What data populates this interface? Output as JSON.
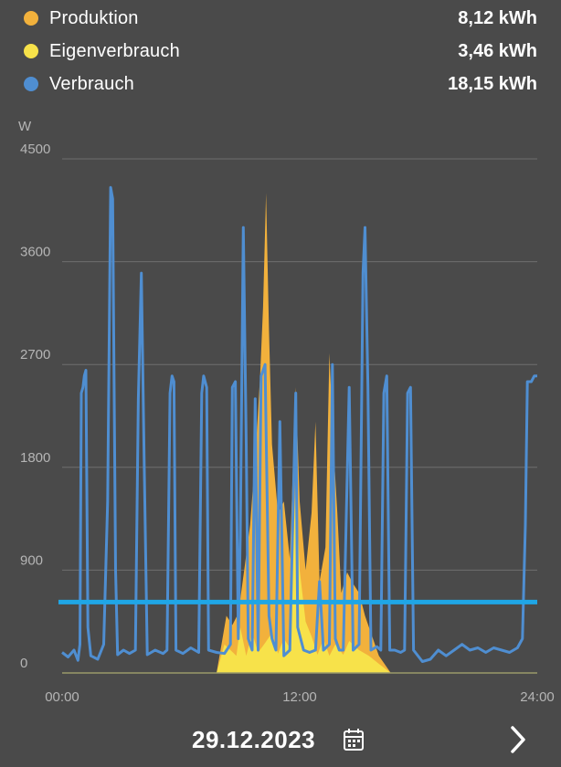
{
  "legend": [
    {
      "label": "Produktion",
      "value": "8,12 kWh",
      "color": "#f2b13c"
    },
    {
      "label": "Eigenverbrauch",
      "value": "3,46 kWh",
      "color": "#f7e24a"
    },
    {
      "label": "Verbrauch",
      "value": "18,15 kWh",
      "color": "#4f8ed1"
    }
  ],
  "footer": {
    "date": "29.12.2023",
    "calendar_icon": "calendar-icon",
    "next_icon": "chevron-right-icon"
  },
  "colors": {
    "background": "#4a4a4a",
    "grid": "#6e6e6e",
    "axis_text": "#b5b5b5",
    "threshold": "#1fa6e6"
  },
  "chart_data": {
    "type": "area",
    "ylabel": "W",
    "ylim": [
      0,
      4500
    ],
    "yticks": [
      "0",
      "900",
      "1800",
      "2700",
      "3600",
      "4500"
    ],
    "xlim": [
      0,
      24
    ],
    "xticks": [
      {
        "x": 0,
        "label": "00:00"
      },
      {
        "x": 12,
        "label": "12:00"
      },
      {
        "x": 24,
        "label": "24:00"
      }
    ],
    "threshold": 620,
    "series": [
      {
        "name": "Produktion",
        "color": "#f2b13c",
        "points": [
          [
            7.8,
            0
          ],
          [
            8.1,
            300
          ],
          [
            8.3,
            500
          ],
          [
            8.6,
            420
          ],
          [
            8.9,
            520
          ],
          [
            9.2,
            900
          ],
          [
            9.5,
            1300
          ],
          [
            9.8,
            2000
          ],
          [
            10.0,
            2600
          ],
          [
            10.15,
            3200
          ],
          [
            10.3,
            4200
          ],
          [
            10.45,
            3000
          ],
          [
            10.6,
            2000
          ],
          [
            10.9,
            1400
          ],
          [
            11.2,
            1500
          ],
          [
            11.5,
            1000
          ],
          [
            11.8,
            2500
          ],
          [
            12.0,
            1500
          ],
          [
            12.3,
            900
          ],
          [
            12.6,
            1400
          ],
          [
            12.8,
            2200
          ],
          [
            13.0,
            800
          ],
          [
            13.3,
            1100
          ],
          [
            13.5,
            2800
          ],
          [
            13.7,
            2000
          ],
          [
            13.9,
            1400
          ],
          [
            14.1,
            700
          ],
          [
            14.4,
            880
          ],
          [
            14.7,
            780
          ],
          [
            15.0,
            700
          ],
          [
            15.3,
            500
          ],
          [
            15.6,
            350
          ],
          [
            16.0,
            150
          ],
          [
            16.6,
            0
          ]
        ]
      },
      {
        "name": "Eigenverbrauch",
        "color": "#f7e24a",
        "points": [
          [
            7.8,
            0
          ],
          [
            8.2,
            250
          ],
          [
            8.8,
            150
          ],
          [
            9.0,
            400
          ],
          [
            9.3,
            150
          ],
          [
            9.6,
            350
          ],
          [
            9.9,
            180
          ],
          [
            10.2,
            250
          ],
          [
            10.6,
            350
          ],
          [
            10.9,
            170
          ],
          [
            11.2,
            300
          ],
          [
            11.5,
            220
          ],
          [
            11.8,
            1700
          ],
          [
            12.0,
            900
          ],
          [
            12.3,
            450
          ],
          [
            12.6,
            320
          ],
          [
            12.9,
            160
          ],
          [
            13.2,
            300
          ],
          [
            13.5,
            150
          ],
          [
            13.8,
            250
          ],
          [
            14.2,
            160
          ],
          [
            14.5,
            280
          ],
          [
            15.0,
            200
          ],
          [
            15.5,
            150
          ],
          [
            16.0,
            80
          ],
          [
            16.6,
            0
          ]
        ]
      },
      {
        "name": "Verbrauch",
        "color": "#4f8ed1",
        "points": [
          [
            0,
            180
          ],
          [
            0.3,
            140
          ],
          [
            0.6,
            200
          ],
          [
            0.8,
            110
          ],
          [
            0.9,
            250
          ],
          [
            0.97,
            2450
          ],
          [
            1.05,
            2500
          ],
          [
            1.12,
            2600
          ],
          [
            1.2,
            2650
          ],
          [
            1.3,
            400
          ],
          [
            1.45,
            150
          ],
          [
            1.8,
            120
          ],
          [
            2.1,
            250
          ],
          [
            2.3,
            1500
          ],
          [
            2.45,
            4250
          ],
          [
            2.55,
            4150
          ],
          [
            2.7,
            900
          ],
          [
            2.8,
            160
          ],
          [
            3.1,
            200
          ],
          [
            3.4,
            170
          ],
          [
            3.7,
            200
          ],
          [
            3.85,
            2400
          ],
          [
            4.0,
            3500
          ],
          [
            4.15,
            1800
          ],
          [
            4.3,
            160
          ],
          [
            4.7,
            200
          ],
          [
            5.1,
            170
          ],
          [
            5.3,
            200
          ],
          [
            5.45,
            2450
          ],
          [
            5.55,
            2600
          ],
          [
            5.65,
            2550
          ],
          [
            5.75,
            200
          ],
          [
            6.1,
            170
          ],
          [
            6.5,
            220
          ],
          [
            6.9,
            180
          ],
          [
            7.05,
            2450
          ],
          [
            7.15,
            2600
          ],
          [
            7.3,
            2500
          ],
          [
            7.4,
            200
          ],
          [
            7.8,
            180
          ],
          [
            8.2,
            170
          ],
          [
            8.5,
            250
          ],
          [
            8.6,
            2500
          ],
          [
            8.75,
            2550
          ],
          [
            8.9,
            300
          ],
          [
            9.0,
            1200
          ],
          [
            9.15,
            3900
          ],
          [
            9.3,
            2000
          ],
          [
            9.4,
            300
          ],
          [
            9.6,
            200
          ],
          [
            9.75,
            2400
          ],
          [
            9.9,
            200
          ],
          [
            10.05,
            2600
          ],
          [
            10.25,
            2700
          ],
          [
            10.45,
            500
          ],
          [
            10.6,
            300
          ],
          [
            10.8,
            200
          ],
          [
            11.0,
            2200
          ],
          [
            11.2,
            150
          ],
          [
            11.5,
            200
          ],
          [
            11.8,
            2450
          ],
          [
            11.9,
            400
          ],
          [
            12.2,
            200
          ],
          [
            12.5,
            180
          ],
          [
            12.8,
            200
          ],
          [
            13.0,
            800
          ],
          [
            13.2,
            200
          ],
          [
            13.5,
            250
          ],
          [
            13.65,
            2700
          ],
          [
            13.8,
            300
          ],
          [
            14.0,
            200
          ],
          [
            14.2,
            200
          ],
          [
            14.5,
            2500
          ],
          [
            14.7,
            200
          ],
          [
            15.0,
            250
          ],
          [
            15.2,
            3500
          ],
          [
            15.3,
            3900
          ],
          [
            15.45,
            2500
          ],
          [
            15.6,
            200
          ],
          [
            15.9,
            230
          ],
          [
            16.1,
            200
          ],
          [
            16.25,
            2450
          ],
          [
            16.4,
            2600
          ],
          [
            16.55,
            200
          ],
          [
            16.8,
            200
          ],
          [
            17.1,
            180
          ],
          [
            17.3,
            200
          ],
          [
            17.45,
            2450
          ],
          [
            17.6,
            2500
          ],
          [
            17.75,
            200
          ],
          [
            18.2,
            100
          ],
          [
            18.6,
            120
          ],
          [
            19.0,
            200
          ],
          [
            19.4,
            150
          ],
          [
            19.8,
            200
          ],
          [
            20.2,
            250
          ],
          [
            20.6,
            200
          ],
          [
            21.0,
            220
          ],
          [
            21.4,
            180
          ],
          [
            21.8,
            220
          ],
          [
            22.2,
            200
          ],
          [
            22.6,
            180
          ],
          [
            23.0,
            220
          ],
          [
            23.25,
            300
          ],
          [
            23.4,
            1300
          ],
          [
            23.5,
            2550
          ],
          [
            23.7,
            2550
          ],
          [
            23.85,
            2600
          ],
          [
            24.0,
            2600
          ]
        ]
      }
    ]
  }
}
